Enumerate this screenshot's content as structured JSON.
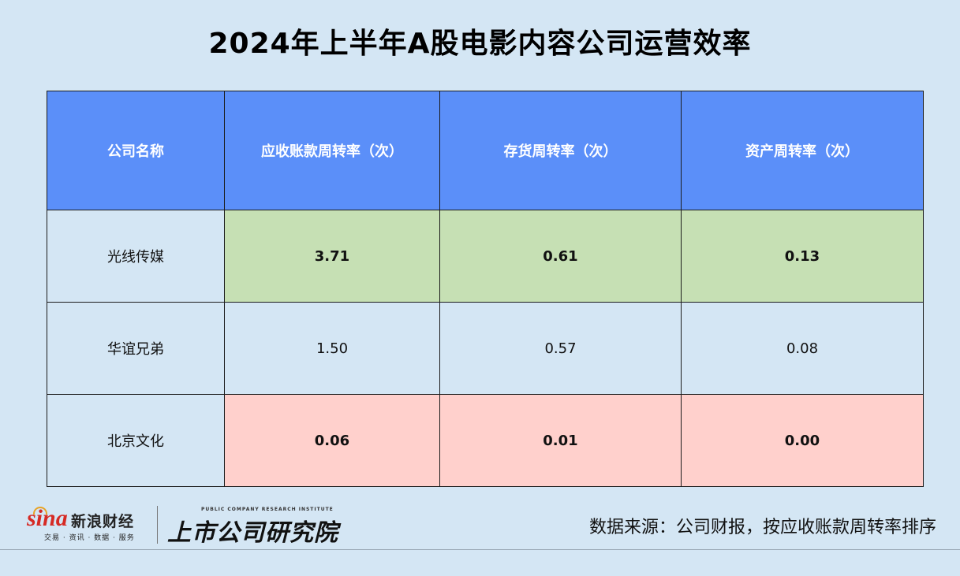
{
  "title": "2024年上半年A股电影内容公司运营效率",
  "colors": {
    "header_bg": "#5b8ff9",
    "good_bg": "#c6e0b4",
    "good_text": "#00b050",
    "bad_bg": "#ffd0cc",
    "bad_text": "#e8212a",
    "page_bg": "#d4e6f4"
  },
  "chart_data": {
    "type": "table",
    "columns": [
      "公司名称",
      "应收账款周转率（次）",
      "存货周转率（次）",
      "资产周转率（次）"
    ],
    "rows": [
      {
        "company": "光线传媒",
        "values": [
          "3.71",
          "0.61",
          "0.13"
        ],
        "highlight": "good"
      },
      {
        "company": "华谊兄弟",
        "values": [
          "1.50",
          "0.57",
          "0.08"
        ],
        "highlight": "none"
      },
      {
        "company": "北京文化",
        "values": [
          "0.06",
          "0.01",
          "0.00"
        ],
        "highlight": "bad"
      }
    ]
  },
  "footer": {
    "sina_word": "sina",
    "sina_cn": "新浪财经",
    "sina_sub": "交易 · 资讯 · 数据 · 服务",
    "brand2_en": "PUBLIC COMPANY RESEARCH INSTITUTE",
    "brand2_cn": "上市公司研究院",
    "source": "数据来源：公司财报，按应收账款周转率排序"
  }
}
